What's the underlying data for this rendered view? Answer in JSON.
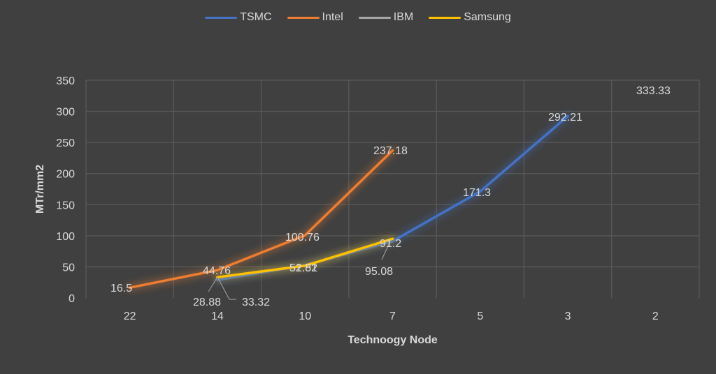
{
  "chart_data": {
    "type": "line",
    "title": "",
    "xlabel": "Technoogy Node",
    "ylabel": "MTr/mm2",
    "categories": [
      "22",
      "14",
      "10",
      "7",
      "5",
      "3",
      "2"
    ],
    "ylim": [
      0,
      350
    ],
    "yticks": [
      0,
      50,
      100,
      150,
      200,
      250,
      300,
      350
    ],
    "grid": true,
    "legend_position": "top",
    "series": [
      {
        "name": "TSMC",
        "color": "#4472c4",
        "values": [
          null,
          28.88,
          52.51,
          91.2,
          171.3,
          292.21,
          null
        ]
      },
      {
        "name": "Intel",
        "color": "#ed7d31",
        "values": [
          16.5,
          44.76,
          100.76,
          237.18,
          null,
          null,
          null
        ]
      },
      {
        "name": "IBM",
        "color": "#a5a5a5",
        "values": [
          null,
          null,
          null,
          null,
          null,
          null,
          333.33
        ]
      },
      {
        "name": "Samsung",
        "color": "#ffc000",
        "values": [
          null,
          33.32,
          51.82,
          95.08,
          null,
          null,
          null
        ]
      }
    ],
    "data_labels": [
      {
        "series": "Intel",
        "text": "16.5"
      },
      {
        "series": "Intel",
        "text": "44.76"
      },
      {
        "series": "Intel",
        "text": "100.76"
      },
      {
        "series": "Intel",
        "text": "237.18"
      },
      {
        "series": "TSMC",
        "text": "28.88"
      },
      {
        "series": "TSMC",
        "text": "52.51"
      },
      {
        "series": "TSMC",
        "text": "91.2"
      },
      {
        "series": "TSMC",
        "text": "171.3"
      },
      {
        "series": "TSMC",
        "text": "292.21"
      },
      {
        "series": "IBM",
        "text": "333.33"
      },
      {
        "series": "Samsung",
        "text": "33.32"
      },
      {
        "series": "Samsung",
        "text": "51.82"
      },
      {
        "series": "Samsung",
        "text": "95.08"
      }
    ]
  },
  "legend": [
    {
      "label": "TSMC",
      "color": "#4472c4"
    },
    {
      "label": "Intel",
      "color": "#ed7d31"
    },
    {
      "label": "IBM",
      "color": "#a5a5a5"
    },
    {
      "label": "Samsung",
      "color": "#ffc000"
    }
  ]
}
